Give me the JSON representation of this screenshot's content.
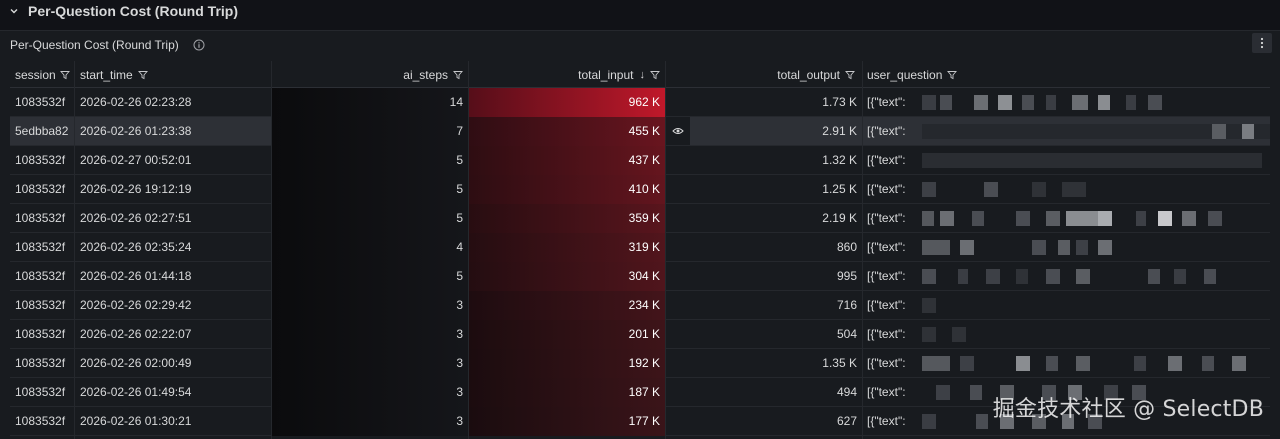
{
  "row": {
    "title": "Per-Question Cost (Round Trip)"
  },
  "panel": {
    "title": "Per-Question Cost (Round Trip)"
  },
  "columns": [
    "session",
    "start_time",
    "ai_steps",
    "total_input",
    "total_output",
    "user_question"
  ],
  "sort_indicator": "↓",
  "rows": [
    {
      "session": "1083532f",
      "start_time": "2026-02-26 02:23:28",
      "ai_steps": "14",
      "total_input": "962 K",
      "total_output": "1.73 K",
      "user_question": "[{\"text\":",
      "input_ratio": 1.0
    },
    {
      "session": "5edbba82",
      "start_time": "2026-02-26 01:23:38",
      "ai_steps": "7",
      "total_input": "455 K",
      "total_output": "2.91 K",
      "user_question": "[{\"text\":",
      "input_ratio": 0.47
    },
    {
      "session": "1083532f",
      "start_time": "2026-02-27 00:52:01",
      "ai_steps": "5",
      "total_input": "437 K",
      "total_output": "1.32 K",
      "user_question": "[{\"text\":",
      "input_ratio": 0.45
    },
    {
      "session": "1083532f",
      "start_time": "2026-02-26 19:12:19",
      "ai_steps": "5",
      "total_input": "410 K",
      "total_output": "1.25 K",
      "user_question": "[{\"text\":",
      "input_ratio": 0.43
    },
    {
      "session": "1083532f",
      "start_time": "2026-02-26 02:27:51",
      "ai_steps": "5",
      "total_input": "359 K",
      "total_output": "2.19 K",
      "user_question": "[{\"text\":",
      "input_ratio": 0.37
    },
    {
      "session": "1083532f",
      "start_time": "2026-02-26 02:35:24",
      "ai_steps": "4",
      "total_input": "319 K",
      "total_output": "860",
      "user_question": "[{\"text\":",
      "input_ratio": 0.33
    },
    {
      "session": "1083532f",
      "start_time": "2026-02-26 01:44:18",
      "ai_steps": "5",
      "total_input": "304 K",
      "total_output": "995",
      "user_question": "[{\"text\":",
      "input_ratio": 0.32
    },
    {
      "session": "1083532f",
      "start_time": "2026-02-26 02:29:42",
      "ai_steps": "3",
      "total_input": "234 K",
      "total_output": "716",
      "user_question": "[{\"text\":",
      "input_ratio": 0.24
    },
    {
      "session": "1083532f",
      "start_time": "2026-02-26 02:22:07",
      "ai_steps": "3",
      "total_input": "201 K",
      "total_output": "504",
      "user_question": "[{\"text\":",
      "input_ratio": 0.21
    },
    {
      "session": "1083532f",
      "start_time": "2026-02-26 02:00:49",
      "ai_steps": "3",
      "total_input": "192 K",
      "total_output": "1.35 K",
      "user_question": "[{\"text\":",
      "input_ratio": 0.2
    },
    {
      "session": "1083532f",
      "start_time": "2026-02-26 01:49:54",
      "ai_steps": "3",
      "total_input": "187 K",
      "total_output": "494",
      "user_question": "[{\"text\":",
      "input_ratio": 0.19
    },
    {
      "session": "1083532f",
      "start_time": "2026-02-26 01:30:21",
      "ai_steps": "3",
      "total_input": "177 K",
      "total_output": "627",
      "user_question": "[{\"text\":",
      "input_ratio": 0.18
    }
  ],
  "selected_row": 1,
  "colors": {
    "heat_max": "#c0182a",
    "heat_min": "#1c1315",
    "panel_bg": "#181b1f"
  },
  "watermark": "掘金技术社区 @ SelectDB"
}
